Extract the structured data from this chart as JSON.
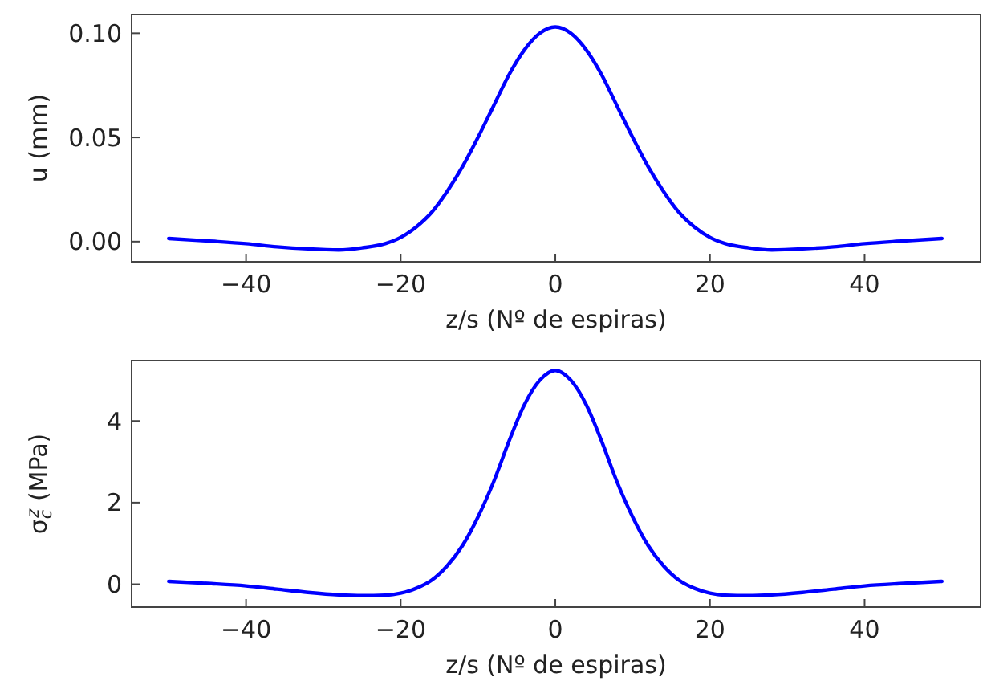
{
  "chart_data": [
    {
      "type": "line",
      "ylabel": "u (mm)",
      "xlabel": "z/s (Nº de espiras)",
      "xlim": [
        -54.8,
        55
      ],
      "xticks": [
        -40,
        -20,
        0,
        20,
        40
      ],
      "ylim": [
        -0.0097,
        0.109
      ],
      "yticks": [
        {
          "value": 0,
          "label": "0.00"
        },
        {
          "value": 0.05,
          "label": "0.05"
        },
        {
          "value": 0.1,
          "label": "0.10"
        }
      ],
      "grid": false,
      "x": [
        -50,
        -45,
        -40,
        -36,
        -32,
        -28,
        -25,
        -22,
        -20,
        -18,
        -16,
        -14,
        -12,
        -10,
        -8,
        -6,
        -4,
        -2,
        0,
        2,
        4,
        6,
        8,
        10,
        12,
        14,
        16,
        18,
        20,
        22,
        25,
        28,
        32,
        36,
        40,
        45,
        50
      ],
      "series": [
        {
          "color": "#0000ff",
          "values": [
            0.0015,
            0.0003,
            -0.001,
            -0.0025,
            -0.0035,
            -0.004,
            -0.003,
            -0.001,
            0.002,
            0.007,
            0.014,
            0.024,
            0.036,
            0.05,
            0.065,
            0.08,
            0.092,
            0.1,
            0.103,
            0.1,
            0.092,
            0.08,
            0.065,
            0.05,
            0.036,
            0.024,
            0.014,
            0.007,
            0.002,
            -0.001,
            -0.003,
            -0.004,
            -0.0035,
            -0.0025,
            -0.001,
            0.0003,
            0.0015
          ]
        }
      ]
    },
    {
      "type": "line",
      "ylabel": "σ$_{c}$$^{z}$ (MPa)",
      "xlabel": "z/s (Nº de espiras)",
      "xlim": [
        -54.8,
        55
      ],
      "xticks": [
        -40,
        -20,
        0,
        20,
        40
      ],
      "ylim": [
        -0.56,
        5.48
      ],
      "yticks": [
        0,
        2,
        4
      ],
      "grid": false,
      "x": [
        -50,
        -45,
        -40,
        -36,
        -32,
        -28,
        -25,
        -22,
        -20,
        -18,
        -16,
        -14,
        -12,
        -10,
        -8,
        -6,
        -4,
        -2,
        0,
        2,
        4,
        6,
        8,
        10,
        12,
        14,
        16,
        18,
        20,
        22,
        25,
        28,
        32,
        36,
        40,
        45,
        50
      ],
      "series": [
        {
          "color": "#0000ff",
          "values": [
            0.07,
            0.02,
            -0.04,
            -0.12,
            -0.2,
            -0.26,
            -0.28,
            -0.27,
            -0.22,
            -0.1,
            0.1,
            0.45,
            0.95,
            1.65,
            2.5,
            3.5,
            4.4,
            5.0,
            5.24,
            5.0,
            4.4,
            3.5,
            2.5,
            1.65,
            0.95,
            0.45,
            0.1,
            -0.1,
            -0.22,
            -0.27,
            -0.28,
            -0.26,
            -0.2,
            -0.12,
            -0.04,
            0.02,
            0.07
          ]
        }
      ]
    }
  ]
}
